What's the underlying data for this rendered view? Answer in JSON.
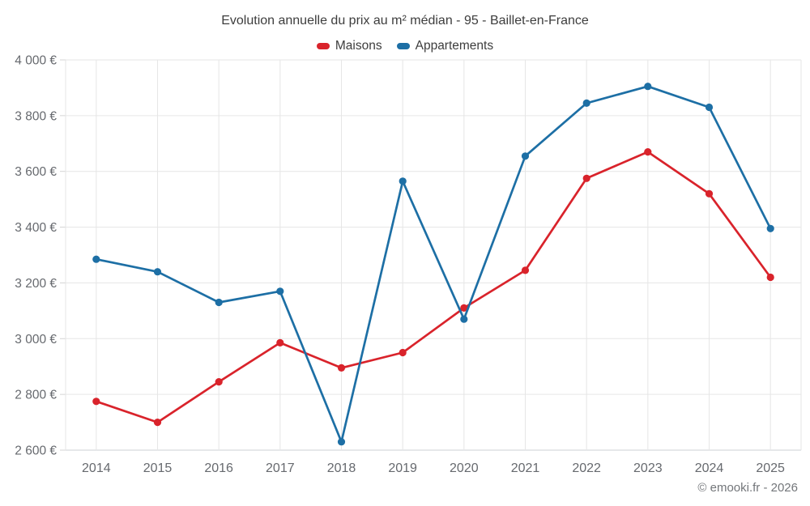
{
  "title": "Evolution annuelle du prix au m² médian - 95 - Baillet-en-France",
  "footer": "© emooki.fr - 2026",
  "colors": {
    "maisons": "#d9232b",
    "appartements": "#1d6fa5",
    "grid": "#e6e6e6",
    "axis_line": "#ccd1d6",
    "tick": "#d4d4d4",
    "axis_label": "#66696e",
    "title_text": "#3d3d3d",
    "footer_text": "#73767a"
  },
  "legend": {
    "items": [
      {
        "label": "Maisons",
        "color": "#d9232b"
      },
      {
        "label": "Appartements",
        "color": "#1d6fa5"
      }
    ]
  },
  "chart_data": {
    "type": "line",
    "title": "Evolution annuelle du prix au m² médian - 95 - Baillet-en-France",
    "categories": [
      "2014",
      "2015",
      "2016",
      "2017",
      "2018",
      "2019",
      "2020",
      "2021",
      "2022",
      "2023",
      "2024",
      "2025"
    ],
    "series": [
      {
        "name": "Maisons",
        "color": "#d9232b",
        "values": [
          2775,
          2700,
          2845,
          2985,
          2895,
          2950,
          3110,
          3245,
          3575,
          3670,
          3520,
          3220
        ]
      },
      {
        "name": "Appartements",
        "color": "#1d6fa5",
        "values": [
          3285,
          3240,
          3130,
          3170,
          2630,
          3565,
          3070,
          3655,
          3845,
          3905,
          3830,
          3395
        ]
      }
    ],
    "ylim": [
      2600,
      4000
    ],
    "ytick_step": 200,
    "yticks": [
      2600,
      2800,
      3000,
      3200,
      3400,
      3600,
      3800,
      4000
    ],
    "ytick_labels": [
      "2 600 €",
      "2 800 €",
      "3 000 €",
      "3 200 €",
      "3 400 €",
      "3 600 €",
      "3 800 €",
      "4 000 €"
    ],
    "ylabel": "",
    "xlabel": "",
    "grid": true,
    "legend_position": "top"
  }
}
